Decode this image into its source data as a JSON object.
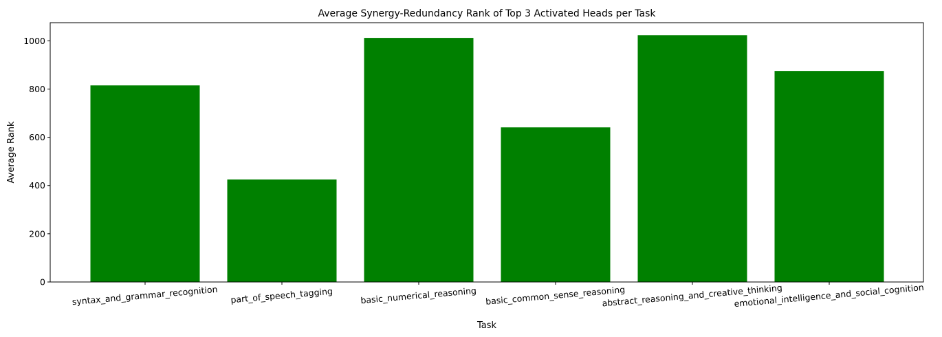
{
  "chart_data": {
    "type": "bar",
    "title": "Average Synergy-Redundancy Rank of Top 3 Activated Heads per Task",
    "xlabel": "Task",
    "ylabel": "Average Rank",
    "categories": [
      "syntax_and_grammar_recognition",
      "part_of_speech_tagging",
      "basic_numerical_reasoning",
      "basic_common_sense_reasoning",
      "abstract_reasoning_and_creative_thinking",
      "emotional_intelligence_and_social_cognition"
    ],
    "values": [
      815,
      425,
      1012,
      641,
      1023,
      875
    ],
    "ylim": [
      0,
      1075
    ],
    "yticks": [
      0,
      200,
      400,
      600,
      800,
      1000
    ],
    "bar_color": "#008000",
    "grid": false,
    "legend": "none"
  }
}
